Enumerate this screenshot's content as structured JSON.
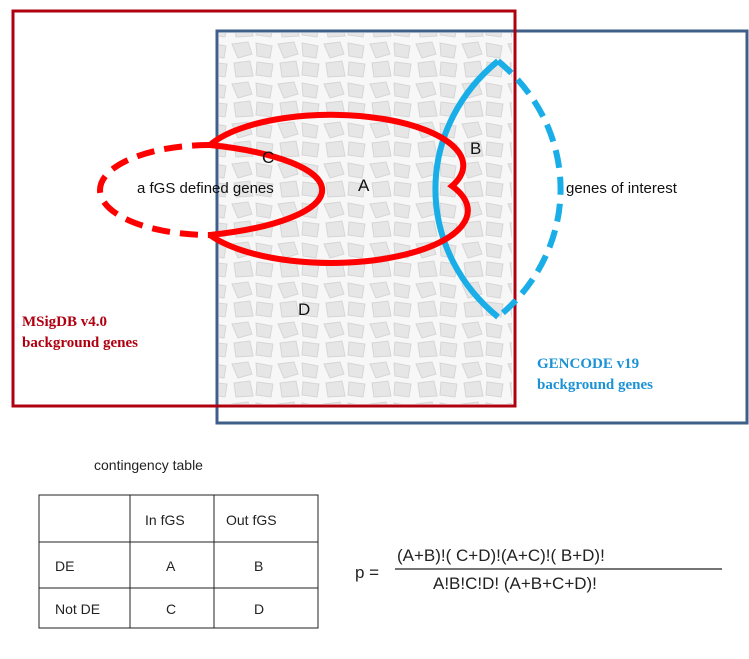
{
  "colors": {
    "msigdb": "#b00010",
    "gencode_box": "#3e5f8a",
    "fgs_ellipse": "#ff0000",
    "interest_ellipse": "#19aee8",
    "gencode_label": "#1c92d6",
    "texture": "#e9e9e9"
  },
  "diagram": {
    "region_labels": {
      "a": "A",
      "b": "B",
      "c": "C",
      "d": "D"
    },
    "fgs_label": "a fGS defined genes",
    "interest_label": "genes of interest",
    "msigdb_label": {
      "line1": "MSigDB v4.0",
      "line2": "background genes"
    },
    "gencode_label": {
      "line1": "GENCODE v19",
      "line2": "background genes"
    }
  },
  "contingency": {
    "title": "contingency table",
    "columns": [
      "",
      "In fGS",
      "Out fGS"
    ],
    "rows": [
      {
        "label": "DE",
        "cells": [
          "A",
          "B"
        ]
      },
      {
        "label": "Not DE",
        "cells": [
          "C",
          "D"
        ]
      }
    ]
  },
  "formula": {
    "lhs": "p =",
    "numerator": "(A+B)!( C+D)!(A+C)!( B+D)!",
    "denominator": "A!B!C!D!  (A+B+C+D)!"
  }
}
